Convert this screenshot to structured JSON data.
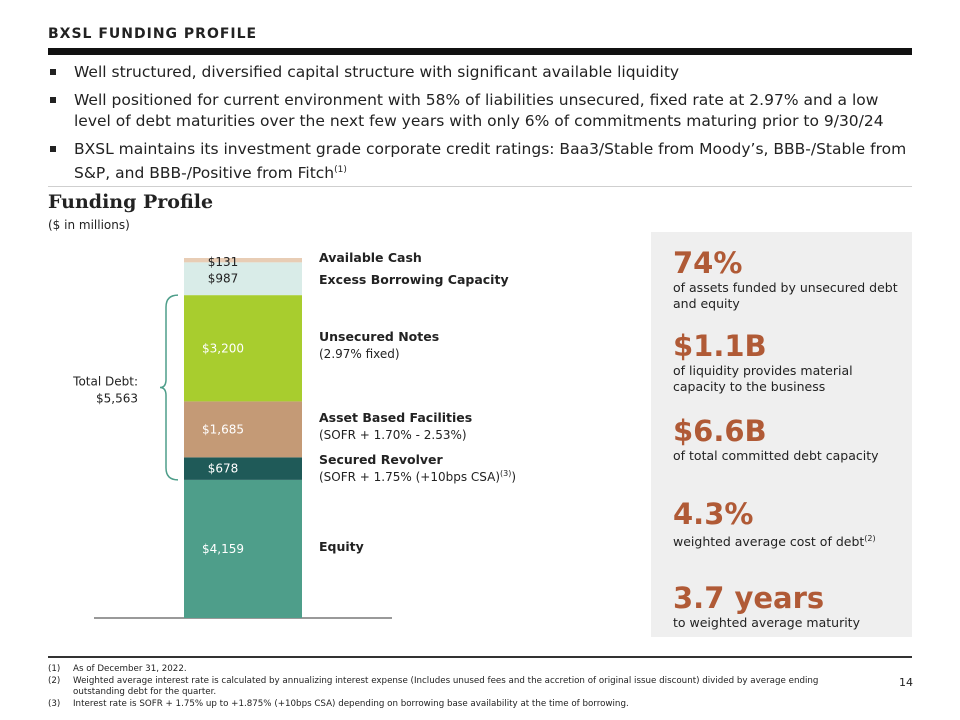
{
  "header": {
    "title": "BXSL FUNDING PROFILE"
  },
  "bullets": [
    {
      "text": "Well structured, diversified capital structure with significant available liquidity",
      "sup": ""
    },
    {
      "text": "Well positioned for current environment with 58% of liabilities unsecured, fixed rate at 2.97% and a low level of debt maturities over the next few years with only 6% of commitments maturing prior to 9/30/24",
      "sup": ""
    },
    {
      "text": "BXSL maintains its investment grade corporate credit ratings: Baa3/Stable from Moody’s, BBB-/Stable from S&P, and BBB-/Positive from Fitch",
      "sup": "(1)"
    }
  ],
  "section": {
    "title": "Funding Profile",
    "subtitle": "($ in millions)"
  },
  "chart_data": {
    "type": "bar",
    "stacked": true,
    "units": "$ in millions",
    "segments": [
      {
        "value": 4159,
        "value_label": "$4,159",
        "label": "Equity",
        "sublabel": "",
        "color": "#4e9e8a",
        "label_color": "#ffffff"
      },
      {
        "value": 678,
        "value_label": "$678",
        "label": "Secured Revolver",
        "sublabel": "(SOFR + 1.75% (+10bps CSA)",
        "sublabel_sup": "(3)",
        "sublabel_tail": ")",
        "color": "#1f5a58",
        "label_color": "#ffffff"
      },
      {
        "value": 1685,
        "value_label": "$1,685",
        "label": "Asset Based Facilities",
        "sublabel": "(SOFR + 1.70% - 2.53%)",
        "color": "#c49a76",
        "label_color": "#ffffff"
      },
      {
        "value": 3200,
        "value_label": "$3,200",
        "label": "Unsecured Notes",
        "sublabel": "(2.97% fixed)",
        "color": "#a8cd2e",
        "label_color": "#ffffff"
      },
      {
        "value": 987,
        "value_label": "$987",
        "label": "Excess Borrowing Capacity",
        "sublabel": "",
        "color": "#d9ece8",
        "label_color": "#222222"
      },
      {
        "value": 131,
        "value_label": "$131",
        "label": "Available Cash",
        "sublabel": "",
        "color": "#e8cdb5",
        "label_color": "#222222"
      }
    ],
    "total_debt": {
      "label": "Total Debt:",
      "value_label": "$5,563",
      "value": 5563
    }
  },
  "stats": [
    {
      "big": "74%",
      "desc": "of assets funded by unsecured debt and equity",
      "sup": ""
    },
    {
      "big": "$1.1B",
      "desc": "of liquidity provides material capacity to the business",
      "sup": ""
    },
    {
      "big": "$6.6B",
      "desc": "of total committed debt capacity",
      "sup": ""
    },
    {
      "big": "4.3%",
      "desc": "weighted average cost of debt",
      "sup": "(2)"
    },
    {
      "big": "3.7 years",
      "desc": "to weighted average maturity",
      "sup": ""
    }
  ],
  "footnotes": [
    {
      "num": "(1)",
      "text": "As of December 31, 2022."
    },
    {
      "num": "(2)",
      "text": "Weighted average interest rate is calculated by annualizing interest expense (Includes unused fees and the accretion of original issue discount) divided by average ending outstanding debt for the quarter."
    },
    {
      "num": "(3)",
      "text": "Interest rate is SOFR + 1.75% up to +1.875% (+10bps CSA) depending on borrowing base availability at the time of borrowing."
    }
  ],
  "page_number": "14"
}
